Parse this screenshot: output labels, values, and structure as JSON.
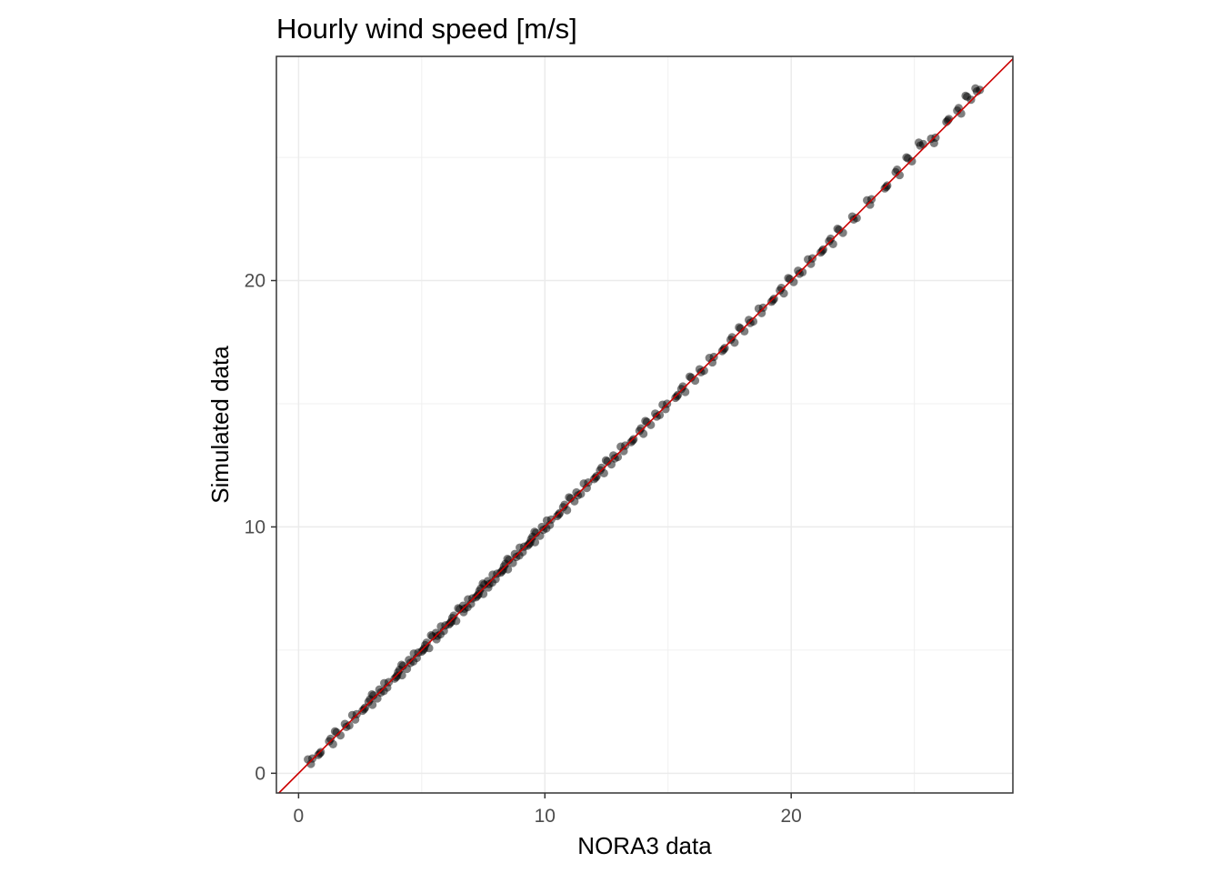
{
  "chart_data": {
    "type": "scatter",
    "title": "Hourly wind speed [m/s]",
    "xlabel": "NORA3 data",
    "ylabel": "Simulated data",
    "xlim": [
      -0.9,
      29.0
    ],
    "ylim": [
      -0.8,
      29.1
    ],
    "x_ticks": [
      0,
      10,
      20
    ],
    "y_ticks": [
      0,
      10,
      20
    ],
    "x_tick_labels": [
      "0",
      "10",
      "20"
    ],
    "y_tick_labels": [
      "0",
      "10",
      "20"
    ],
    "minor_grid": [
      5,
      15,
      25
    ],
    "grid": true,
    "point_color": "#000000",
    "point_opacity": 0.5,
    "reference_line": {
      "slope": 1,
      "intercept": 0,
      "color": "#cc0000"
    },
    "series": [
      {
        "x": [
          0.5,
          0.8,
          1.3,
          1.6,
          2.0,
          2.3,
          2.6,
          2.9,
          3.1,
          3.4,
          3.6,
          3.9,
          4.1,
          4.3,
          4.6,
          4.8,
          5.0,
          5.2,
          5.5,
          5.7,
          5.9,
          6.1,
          6.3,
          6.6,
          6.8,
          7.0,
          7.2,
          7.4,
          7.6,
          7.8,
          8.0,
          8.2,
          8.4,
          8.6,
          8.9,
          9.1,
          9.3,
          9.5,
          9.7,
          10.0,
          10.2,
          10.5,
          10.8,
          11.1,
          11.4,
          11.7,
          12.0,
          12.3,
          12.6,
          12.9,
          13.2,
          13.5,
          13.9,
          14.2,
          14.6,
          14.9,
          15.3,
          15.6,
          16.0,
          16.4,
          16.8,
          17.2,
          17.6,
          18.0,
          18.4,
          18.8,
          19.2,
          19.6,
          20.0,
          20.4,
          20.8,
          21.2,
          21.6,
          22.0,
          22.6,
          23.2,
          23.8,
          24.3,
          24.8,
          25.3,
          25.8,
          26.3,
          26.8,
          27.2,
          27.6
        ],
        "y": [
          0.5,
          0.8,
          1.3,
          1.6,
          2.0,
          2.3,
          2.6,
          2.9,
          3.1,
          3.4,
          3.6,
          3.9,
          4.1,
          4.3,
          4.6,
          4.8,
          5.0,
          5.2,
          5.5,
          5.7,
          5.9,
          6.1,
          6.3,
          6.6,
          6.8,
          7.0,
          7.2,
          7.4,
          7.6,
          7.8,
          8.0,
          8.2,
          8.4,
          8.6,
          8.9,
          9.1,
          9.3,
          9.5,
          9.7,
          10.0,
          10.2,
          10.5,
          10.8,
          11.1,
          11.4,
          11.7,
          12.0,
          12.3,
          12.6,
          12.9,
          13.2,
          13.5,
          13.9,
          14.2,
          14.6,
          14.9,
          15.3,
          15.6,
          16.0,
          16.4,
          16.8,
          17.2,
          17.6,
          18.0,
          18.4,
          18.8,
          19.2,
          19.6,
          20.0,
          20.4,
          20.8,
          21.2,
          21.6,
          22.0,
          22.6,
          23.2,
          23.8,
          24.4,
          24.9,
          25.6,
          25.7,
          26.5,
          26.9,
          27.4,
          27.8
        ]
      }
    ]
  }
}
